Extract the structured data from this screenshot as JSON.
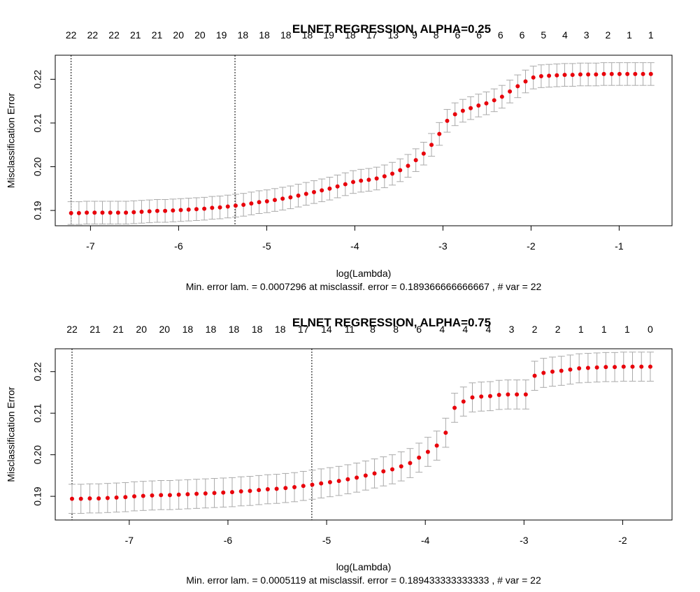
{
  "chart_data": [
    {
      "type": "scatter",
      "title": "ELNET REGRESSION, ALPHA=0.25",
      "xlabel": "log(Lambda)",
      "ylabel": "Misclassification Error",
      "subtitle": "Min. error lam. =  0.0007296  at misclassif. error =  0.189366666666667 , # var = 22",
      "xlim": [
        -7.4,
        -0.4
      ],
      "ylim": [
        0.1865,
        0.2255
      ],
      "xticks": [
        -7,
        -6,
        -5,
        -4,
        -3,
        -2,
        -1
      ],
      "yticks": [
        0.19,
        0.2,
        0.21,
        0.22
      ],
      "top_axis_labels": [
        "22",
        "22",
        "22",
        "21",
        "21",
        "20",
        "20",
        "19",
        "18",
        "18",
        "18",
        "18",
        "19",
        "18",
        "17",
        "13",
        "9",
        "8",
        "6",
        "6",
        "6",
        "6",
        "5",
        "4",
        "3",
        "2",
        "1",
        "1"
      ],
      "vlines": [
        -7.22,
        -5.36
      ],
      "log_lambda_start": -7.22,
      "log_lambda_end": -0.64,
      "mean_error": [
        0.1894,
        0.1894,
        0.1895,
        0.1895,
        0.1895,
        0.1895,
        0.1895,
        0.1895,
        0.1896,
        0.1897,
        0.1898,
        0.1899,
        0.1899,
        0.19,
        0.1901,
        0.1902,
        0.1903,
        0.1904,
        0.1906,
        0.1907,
        0.1909,
        0.1911,
        0.1913,
        0.1916,
        0.1919,
        0.1921,
        0.1924,
        0.1927,
        0.193,
        0.1934,
        0.1938,
        0.1942,
        0.1946,
        0.195,
        0.1955,
        0.196,
        0.1965,
        0.1968,
        0.197,
        0.1973,
        0.1978,
        0.1984,
        0.1992,
        0.2002,
        0.2015,
        0.203,
        0.205,
        0.2075,
        0.2105,
        0.212,
        0.2128,
        0.2134,
        0.214,
        0.2145,
        0.2152,
        0.216,
        0.2172,
        0.2184,
        0.2195,
        0.2204,
        0.2207,
        0.2208,
        0.2209,
        0.221,
        0.221,
        0.2211,
        0.2211,
        0.2211,
        0.2212,
        0.2212,
        0.2212,
        0.2212,
        0.2212,
        0.2212,
        0.2212
      ],
      "se": 0.0026,
      "point_color": "#e8000b",
      "errorbar_color": "#aaaaaa"
    },
    {
      "type": "scatter",
      "title": "ELNET REGRESSION, ALPHA=0.75",
      "xlabel": "log(Lambda)",
      "ylabel": "Misclassification Error",
      "subtitle": "Min. error lam. =  0.0005119  at misclassif. error =  0.189433333333333 , # var = 22",
      "xlim": [
        -7.75,
        -1.5
      ],
      "ylim": [
        0.1843,
        0.2255
      ],
      "xticks": [
        -7,
        -6,
        -5,
        -4,
        -3,
        -2
      ],
      "yticks": [
        0.19,
        0.2,
        0.21,
        0.22
      ],
      "top_axis_labels": [
        "22",
        "21",
        "21",
        "20",
        "20",
        "18",
        "18",
        "18",
        "18",
        "18",
        "17",
        "14",
        "11",
        "8",
        "8",
        "6",
        "4",
        "4",
        "4",
        "3",
        "2",
        "2",
        "1",
        "1",
        "1",
        "0"
      ],
      "vlines": [
        -7.58,
        -5.15
      ],
      "log_lambda_start": -7.58,
      "log_lambda_end": -1.72,
      "mean_error": [
        0.1894,
        0.1894,
        0.1895,
        0.1895,
        0.1896,
        0.1897,
        0.1898,
        0.19,
        0.1901,
        0.1902,
        0.1903,
        0.1903,
        0.1904,
        0.1905,
        0.1906,
        0.1907,
        0.1908,
        0.1909,
        0.191,
        0.1912,
        0.1913,
        0.1915,
        0.1917,
        0.1918,
        0.192,
        0.1922,
        0.1925,
        0.1928,
        0.1931,
        0.1934,
        0.1937,
        0.1941,
        0.1945,
        0.195,
        0.1955,
        0.196,
        0.1965,
        0.1972,
        0.198,
        0.1993,
        0.2007,
        0.2022,
        0.2053,
        0.2113,
        0.2128,
        0.2138,
        0.214,
        0.2141,
        0.2144,
        0.2145,
        0.2145,
        0.2145,
        0.219,
        0.2197,
        0.22,
        0.2202,
        0.2205,
        0.2208,
        0.2209,
        0.221,
        0.2211,
        0.2211,
        0.2212,
        0.2212,
        0.2212,
        0.2212
      ],
      "se": 0.0035,
      "point_color": "#e8000b",
      "errorbar_color": "#aaaaaa"
    }
  ]
}
